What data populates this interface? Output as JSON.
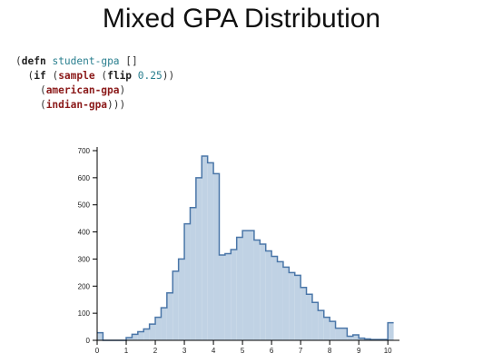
{
  "slide": {
    "title": "Mixed GPA Distribution"
  },
  "code": {
    "line1": {
      "open": "(",
      "kw": "defn",
      "name": "student-gpa",
      "rest": " []"
    },
    "line2": {
      "indent": "  (",
      "kw_if": "if",
      "mid": " (",
      "fn_sample": "sample",
      "mid2": " (",
      "kw_flip": "flip",
      "num": "0.25",
      "close": "))"
    },
    "line3": {
      "indent": "    (",
      "fn": "american-gpa",
      "close": ")"
    },
    "line4": {
      "indent": "    (",
      "fn": "indian-gpa",
      "close": ")))"
    }
  },
  "chart_data": {
    "type": "bar",
    "histogram": true,
    "title": "",
    "xlabel": "",
    "ylabel": "",
    "xlim": [
      0,
      10.4
    ],
    "ylim": [
      0,
      700
    ],
    "x_ticks": [
      0,
      1,
      2,
      3,
      4,
      5,
      6,
      7,
      8,
      9,
      10
    ],
    "y_ticks": [
      0,
      100,
      200,
      300,
      400,
      500,
      600,
      700
    ],
    "bin_width": 0.2,
    "bins_x0": [
      0.0,
      0.2,
      0.4,
      0.6,
      0.8,
      1.0,
      1.2,
      1.4,
      1.6,
      1.8,
      2.0,
      2.2,
      2.4,
      2.6,
      2.8,
      3.0,
      3.2,
      3.4,
      3.6,
      3.8,
      4.0,
      4.2,
      4.4,
      4.6,
      4.8,
      5.0,
      5.2,
      5.4,
      5.6,
      5.8,
      6.0,
      6.2,
      6.4,
      6.6,
      6.8,
      7.0,
      7.2,
      7.4,
      7.6,
      7.8,
      8.0,
      8.2,
      8.4,
      8.6,
      8.8,
      9.0,
      9.2,
      9.4,
      9.6,
      9.8,
      10.0
    ],
    "values": [
      28,
      0,
      0,
      0,
      0,
      10,
      22,
      32,
      42,
      60,
      85,
      120,
      175,
      255,
      300,
      430,
      490,
      600,
      680,
      655,
      615,
      315,
      320,
      335,
      380,
      405,
      405,
      370,
      355,
      330,
      310,
      290,
      270,
      250,
      240,
      195,
      170,
      140,
      110,
      85,
      70,
      45,
      45,
      15,
      20,
      8,
      5,
      3,
      3,
      3,
      65
    ],
    "fill_color": "#c0d2e4",
    "stroke_color": "#4a76a8",
    "grid": false,
    "legend": "none"
  }
}
